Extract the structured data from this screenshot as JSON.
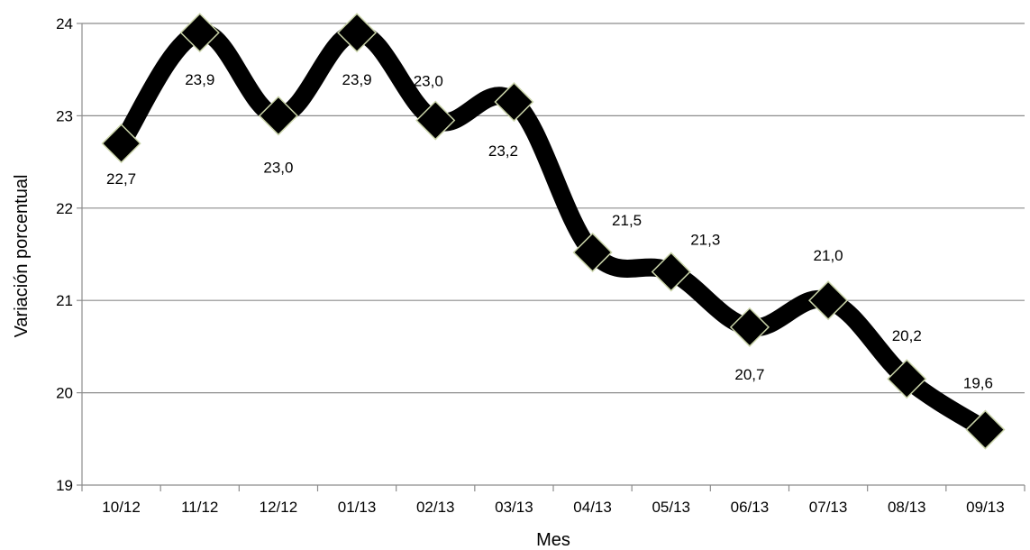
{
  "chart_data": {
    "type": "line",
    "xlabel": "Mes",
    "ylabel": "Variación porcentual",
    "ylim": [
      19,
      24
    ],
    "yticks": [
      "19",
      "20",
      "21",
      "22",
      "23",
      "24"
    ],
    "grid": true,
    "categories": [
      "10/12",
      "11/12",
      "12/12",
      "01/13",
      "02/13",
      "03/13",
      "04/13",
      "05/13",
      "06/13",
      "07/13",
      "08/13",
      "09/13"
    ],
    "values": [
      22.7,
      23.9,
      23.0,
      23.9,
      22.95,
      23.15,
      21.52,
      21.31,
      20.71,
      21.0,
      20.15,
      19.6
    ],
    "data_labels": [
      "22,7",
      "23,9",
      "23,0",
      "23,9",
      "23,0",
      "23,2",
      "21,5",
      "21,3",
      "20,7",
      "21,0",
      "20,2",
      "19,6"
    ],
    "smooth": true,
    "marker": "diamond",
    "colors": {
      "line": "#000000",
      "marker_fill": "#000000",
      "marker_edge": "#c9d3a8",
      "grid": "#8c8c8c",
      "axis": "#8c8c8c"
    }
  }
}
